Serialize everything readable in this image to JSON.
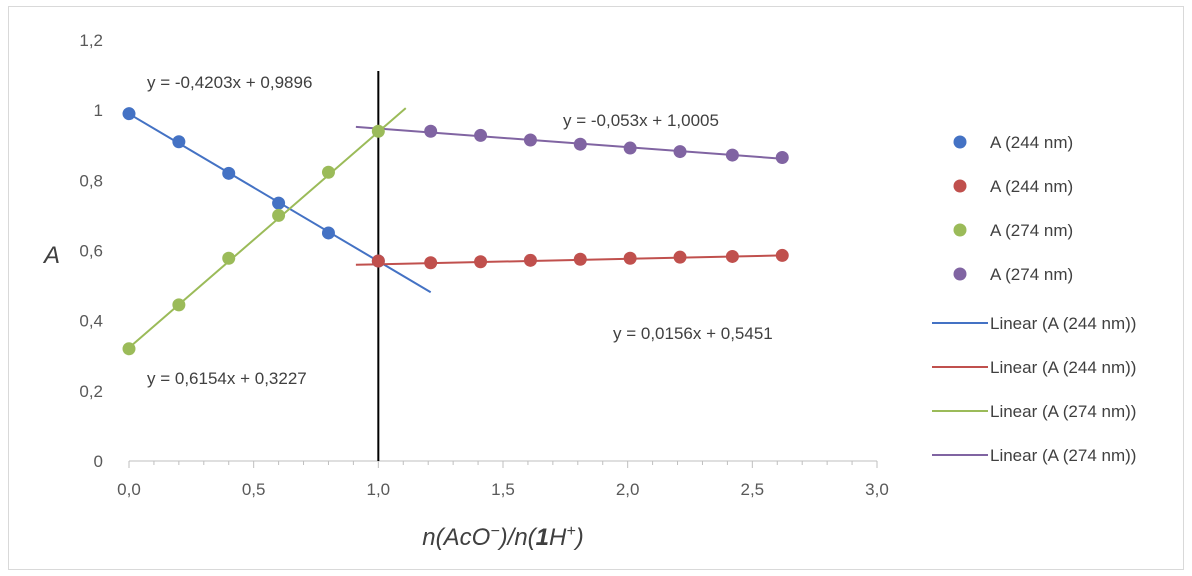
{
  "chart_data": {
    "type": "scatter",
    "xlabel": "n(AcO⁻)/n(1H⁺)",
    "ylabel": "A",
    "xlim": [
      0,
      3
    ],
    "ylim": [
      0,
      1.2
    ],
    "xticks": [
      "0,0",
      "0,5",
      "1,0",
      "1,5",
      "2,0",
      "2,5",
      "3,0"
    ],
    "yticks": [
      "0",
      "0,2",
      "0,4",
      "0,6",
      "0,8",
      "1",
      "1,2"
    ],
    "grid": false,
    "legend_position": "right",
    "vertical_line_x": 1.0,
    "series": [
      {
        "name": "A (244 nm)",
        "color": "#4472c4",
        "x": [
          0,
          0.2,
          0.4,
          0.6,
          0.8,
          1.0
        ],
        "y": [
          0.99,
          0.91,
          0.82,
          0.735,
          0.65,
          0.57
        ]
      },
      {
        "name": "A (244 nm)",
        "color": "#c0504d",
        "x": [
          1.0,
          1.21,
          1.41,
          1.61,
          1.81,
          2.01,
          2.21,
          2.42,
          2.62
        ],
        "y": [
          0.57,
          0.565,
          0.568,
          0.572,
          0.575,
          0.578,
          0.581,
          0.583,
          0.586
        ]
      },
      {
        "name": "A (274 nm)",
        "color": "#9bbb59",
        "x": [
          0,
          0.2,
          0.4,
          0.6,
          0.8,
          1.0
        ],
        "y": [
          0.32,
          0.445,
          0.578,
          0.7,
          0.823,
          0.94
        ]
      },
      {
        "name": "A (274 nm)",
        "color": "#8064a2",
        "x": [
          1.21,
          1.41,
          1.61,
          1.81,
          2.01,
          2.21,
          2.42,
          2.62
        ],
        "y": [
          0.94,
          0.928,
          0.915,
          0.903,
          0.892,
          0.882,
          0.872,
          0.865
        ]
      }
    ],
    "trendlines": [
      {
        "name": "Linear (A (244 nm))",
        "color": "#4472c4",
        "slope": -0.4203,
        "intercept": 0.9896,
        "x_range": [
          0,
          1.21
        ],
        "equation": "y = -0,4203x + 0,9896"
      },
      {
        "name": "Linear (A (244 nm))",
        "color": "#c0504d",
        "slope": 0.0156,
        "intercept": 0.5451,
        "x_range": [
          0.91,
          2.62
        ],
        "equation": "y = 0,0156x + 0,5451"
      },
      {
        "name": "Linear (A (274 nm))",
        "color": "#9bbb59",
        "slope": 0.6154,
        "intercept": 0.3227,
        "x_range": [
          0,
          1.11
        ],
        "equation": "y = 0,6154x + 0,3227"
      },
      {
        "name": "Linear (A (274 nm))",
        "color": "#8064a2",
        "slope": -0.053,
        "intercept": 1.0005,
        "x_range": [
          0.91,
          2.62
        ],
        "equation": "y = -0,053x + 1,0005"
      }
    ]
  }
}
